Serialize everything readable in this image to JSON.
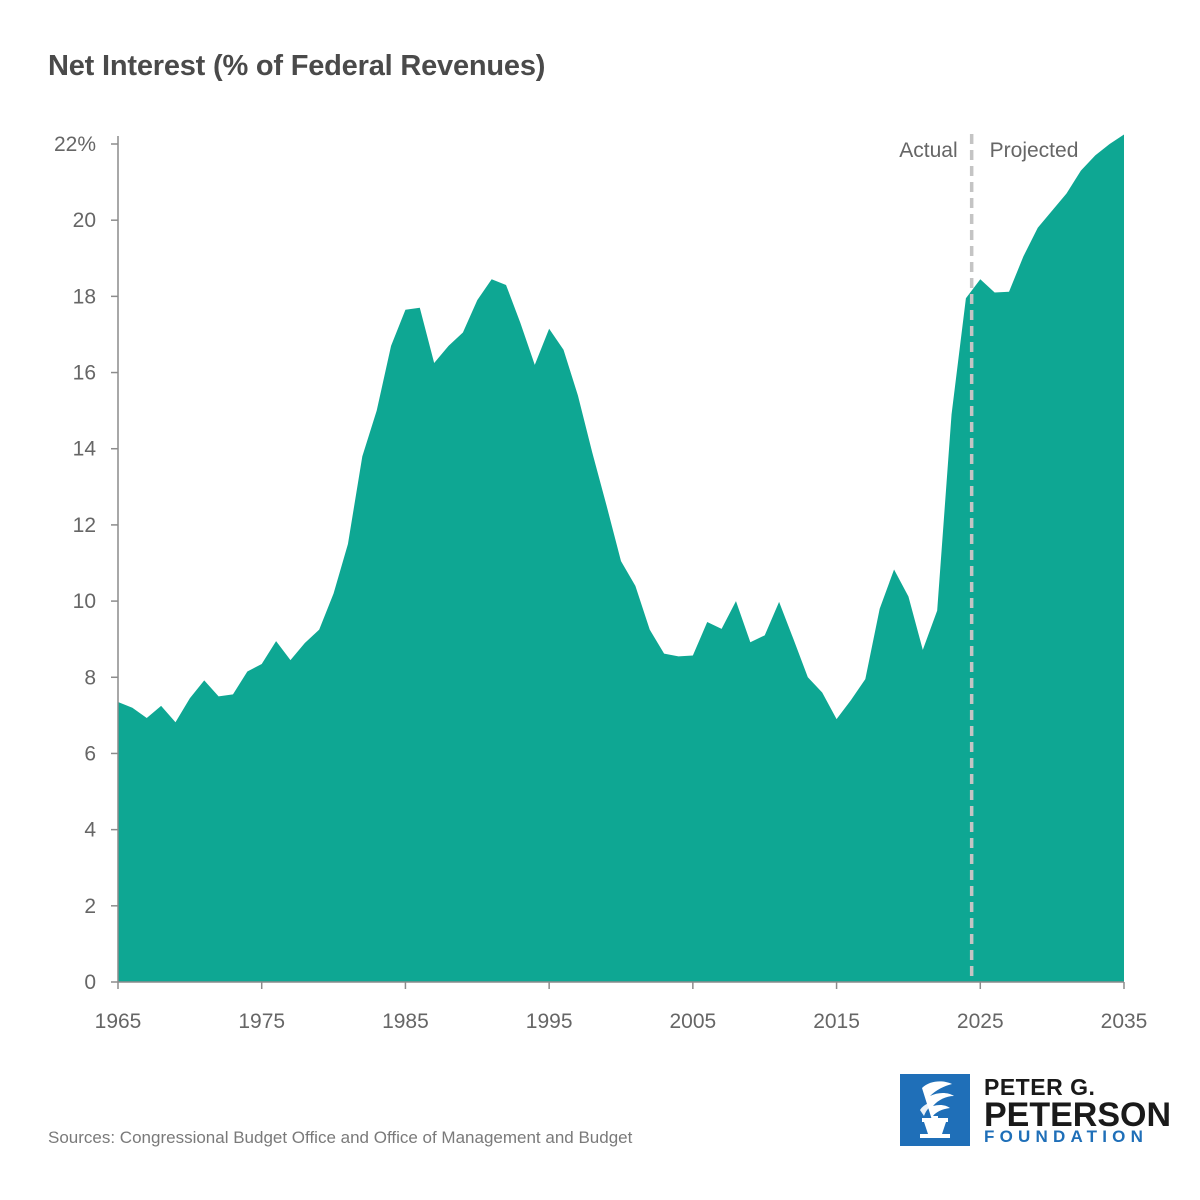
{
  "chart_data": {
    "type": "area",
    "title": "Net Interest (% of Federal Revenues)",
    "xlabel": "",
    "ylabel": "",
    "xlim": [
      1965,
      2035
    ],
    "ylim": [
      0,
      22
    ],
    "x_ticks": [
      "1965",
      "1975",
      "1985",
      "1995",
      "2005",
      "2015",
      "2025",
      "2035"
    ],
    "y_ticks": [
      "0",
      "2",
      "4",
      "6",
      "8",
      "10",
      "12",
      "14",
      "16",
      "18",
      "20",
      "22%"
    ],
    "divider": {
      "x": 2024.4,
      "left_label": "Actual",
      "right_label": "Projected"
    },
    "color": "#0ea793",
    "series": [
      {
        "name": "Net interest as % of federal revenues",
        "x": [
          1965,
          1966,
          1967,
          1968,
          1969,
          1970,
          1971,
          1972,
          1973,
          1974,
          1975,
          1976,
          1977,
          1978,
          1979,
          1980,
          1981,
          1982,
          1983,
          1984,
          1985,
          1986,
          1987,
          1988,
          1989,
          1990,
          1991,
          1992,
          1993,
          1994,
          1995,
          1996,
          1997,
          1998,
          1999,
          2000,
          2001,
          2002,
          2003,
          2004,
          2005,
          2006,
          2007,
          2008,
          2009,
          2010,
          2011,
          2012,
          2013,
          2014,
          2015,
          2016,
          2017,
          2018,
          2019,
          2020,
          2021,
          2022,
          2023,
          2024,
          2025,
          2026,
          2027,
          2028,
          2029,
          2030,
          2031,
          2032,
          2033,
          2034,
          2035
        ],
        "values": [
          7.35,
          7.2,
          6.93,
          7.25,
          6.82,
          7.45,
          7.92,
          7.5,
          7.55,
          8.15,
          8.35,
          8.95,
          8.45,
          8.9,
          9.25,
          10.2,
          11.5,
          13.8,
          15.0,
          16.7,
          17.65,
          17.7,
          16.25,
          16.7,
          17.05,
          17.9,
          18.45,
          18.3,
          17.3,
          16.2,
          17.15,
          16.6,
          15.4,
          13.9,
          12.5,
          11.05,
          10.4,
          9.25,
          8.62,
          8.55,
          8.57,
          9.45,
          9.27,
          10.0,
          8.92,
          9.1,
          9.98,
          9.0,
          8.0,
          7.6,
          6.9,
          7.4,
          7.95,
          9.8,
          10.83,
          10.12,
          8.72,
          9.75,
          14.9,
          17.95,
          18.45,
          18.1,
          18.12,
          19.05,
          19.8,
          20.25,
          20.7,
          21.3,
          21.7,
          22.0,
          22.25
        ]
      }
    ]
  },
  "source": "Sources: Congressional Budget Office and Office of Management and Budget",
  "logo": {
    "line1": "PETER G.",
    "line2": "PETERSON",
    "line3": "FOUNDATION",
    "icon": "torch-icon",
    "color": "#1f6fb8"
  }
}
